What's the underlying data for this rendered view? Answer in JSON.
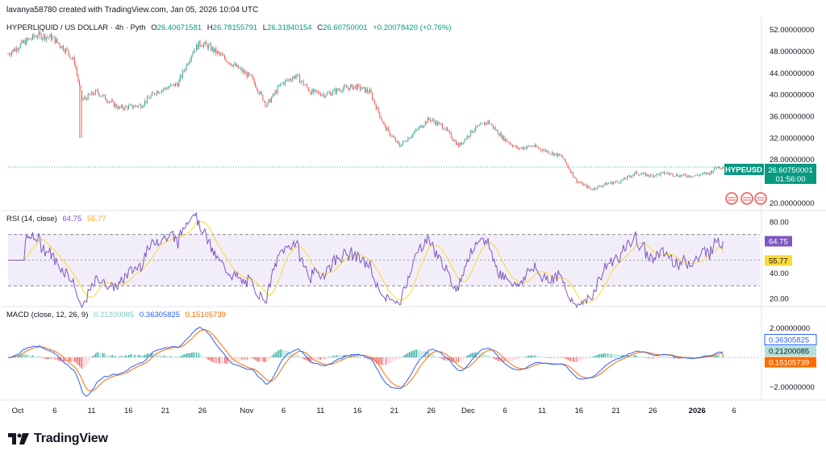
{
  "header": "lavanya58780 created with TradingView.com, Jan 05, 2026 10:04 UTC",
  "symbol_title": "HYPERLIQUID / US DOLLAR · 4h · Pyth",
  "ohlc": {
    "o_label": "O",
    "o": "26.40671581",
    "h_label": "H",
    "h": "26.78155791",
    "l_label": "L",
    "l": "26.31840154",
    "c_label": "C",
    "c": "26.60750001",
    "change": "+0.20078420 (+0.76%)"
  },
  "price_tag": {
    "symbol": "HYPEUSD",
    "value": "26.60750001",
    "countdown": "01:56:00"
  },
  "rsi_legend": {
    "title": "RSI (14, close)",
    "rsi": "64.75",
    "ma": "55.77"
  },
  "macd_legend": {
    "title": "MACD (close, 12, 26, 9)",
    "hist": "0.21200085",
    "macd": "0.36305825",
    "signal": "0.15105739"
  },
  "x_axis_ticks": [
    "Oct",
    "6",
    "11",
    "16",
    "21",
    "26",
    "Nov",
    "6",
    "11",
    "16",
    "21",
    "26",
    "Dec",
    "6",
    "11",
    "16",
    "21",
    "26",
    "2026",
    "6"
  ],
  "brand": "TradingView",
  "colors": {
    "up": "#26a69a",
    "down": "#ef5350",
    "rsi": "#7e57c2",
    "rsi_ma": "#fdd835",
    "macd": "#2962ff",
    "signal": "#ff6d00"
  },
  "chart_data": [
    {
      "type": "candlestick",
      "title": "HYPERLIQUID / US DOLLAR · 4h · Pyth",
      "y_axis_ticks": [
        "52.00000000",
        "48.00000000",
        "44.00000000",
        "40.00000000",
        "36.00000000",
        "32.00000000",
        "28.00000000",
        "24.00000000",
        "20.00000000"
      ],
      "ylim": [
        19,
        53
      ],
      "last_price": 26.6075,
      "close_path": {
        "dates": [
          "Oct 1",
          "Oct 3",
          "Oct 5",
          "Oct 7",
          "Oct 9",
          "Oct 10",
          "Oct 11",
          "Oct 13",
          "Oct 16",
          "Oct 19",
          "Oct 21",
          "Oct 24",
          "Oct 26",
          "Oct 27",
          "Oct 28",
          "Oct 30",
          "Nov 1",
          "Nov 3",
          "Nov 5",
          "Nov 7",
          "Nov 9",
          "Nov 11",
          "Nov 13",
          "Nov 15",
          "Nov 17",
          "Nov 19",
          "Nov 21",
          "Nov 23",
          "Nov 25",
          "Nov 27",
          "Nov 29",
          "Dec 1",
          "Dec 3",
          "Dec 5",
          "Dec 7",
          "Dec 9",
          "Dec 11",
          "Dec 13",
          "Dec 15",
          "Dec 17",
          "Dec 19",
          "Dec 21",
          "Dec 23",
          "Dec 25",
          "Dec 27",
          "Dec 29",
          "Dec 31",
          "Jan 2",
          "Jan 4",
          "Jan 5"
        ],
        "close": [
          47.5,
          49.5,
          51,
          50.5,
          48,
          46,
          39,
          40.5,
          37.5,
          38,
          40.5,
          42,
          48,
          49.5,
          49,
          47,
          45,
          43,
          38,
          42,
          43.5,
          40.5,
          40,
          41,
          41.5,
          40.5,
          34,
          30.5,
          33,
          35.5,
          34,
          30.5,
          33.5,
          35,
          32,
          30,
          30.5,
          29.5,
          28.5,
          24,
          22.5,
          23.5,
          24,
          25.5,
          25,
          25.5,
          25,
          25,
          25.5,
          26.6
        ]
      }
    },
    {
      "type": "line",
      "title": "RSI (14, close)",
      "y_axis_ticks": [
        "80.00",
        "40.00",
        "20.00"
      ],
      "ylim": [
        17,
        83
      ],
      "bands": [
        30,
        50,
        70
      ],
      "series": [
        {
          "name": "RSI",
          "last": 64.75
        },
        {
          "name": "RSI MA",
          "last": 55.77
        }
      ]
    },
    {
      "type": "line+histogram",
      "title": "MACD (close, 12, 26, 9)",
      "y_axis_ticks": [
        "2.00000000",
        "−2.00000000"
      ],
      "ylim": [
        -2.8,
        2.8
      ],
      "series": [
        {
          "name": "Histogram",
          "last": 0.21200085
        },
        {
          "name": "MACD",
          "last": 0.36305825
        },
        {
          "name": "Signal",
          "last": 0.15105739
        }
      ]
    }
  ]
}
